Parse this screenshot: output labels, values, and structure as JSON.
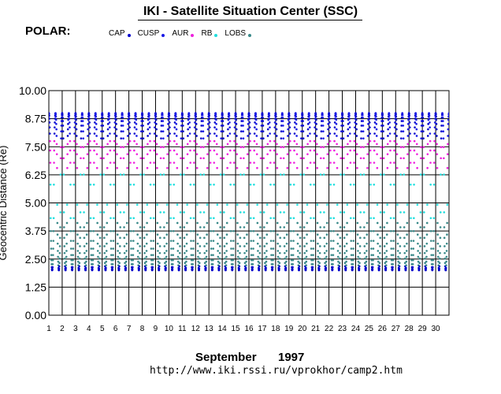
{
  "title": "IKI - Satellite Situation Center (SSC)",
  "satellite": "POLAR:",
  "legend": [
    {
      "label": "CAP",
      "color": "#0000cc"
    },
    {
      "label": "CUSP",
      "color": "#1a1ae6"
    },
    {
      "label": "AUR",
      "color": "#ee22dd"
    },
    {
      "label": "RB",
      "color": "#22dddd"
    },
    {
      "label": "LOBS",
      "color": "#3a8a8a"
    }
  ],
  "footer": {
    "month": "September",
    "year": "1997",
    "url": "http://www.iki.rssi.ru/vprokhor/camp2.htm"
  },
  "chart_data": {
    "type": "scatter",
    "ylabel": "Geocentric Distance (Re)",
    "ylim": [
      0,
      10
    ],
    "yticks": [
      "0.00",
      "1.25",
      "2.50",
      "3.75",
      "5.00",
      "6.25",
      "7.50",
      "8.75",
      "10.00"
    ],
    "xlim": [
      1,
      31
    ],
    "xticks": [
      "1",
      "2",
      "3",
      "4",
      "5",
      "6",
      "7",
      "8",
      "9",
      "10",
      "11",
      "12",
      "13",
      "14",
      "15",
      "16",
      "17",
      "18",
      "19",
      "20",
      "21",
      "22",
      "23",
      "24",
      "25",
      "26",
      "27",
      "28",
      "29",
      "30"
    ],
    "grid": true,
    "orbit": {
      "apogee_re": 9.0,
      "perigee_re": 2.0,
      "cycles_per_day": 2,
      "region_bands": [
        {
          "name": "CAP",
          "from": 7.8,
          "to": 10.0
        },
        {
          "name": "AUR",
          "from": 6.3,
          "to": 7.8
        },
        {
          "name": "RB",
          "from": 4.3,
          "to": 6.3
        },
        {
          "name": "LOBS",
          "from": 2.2,
          "to": 4.3
        }
      ]
    }
  }
}
